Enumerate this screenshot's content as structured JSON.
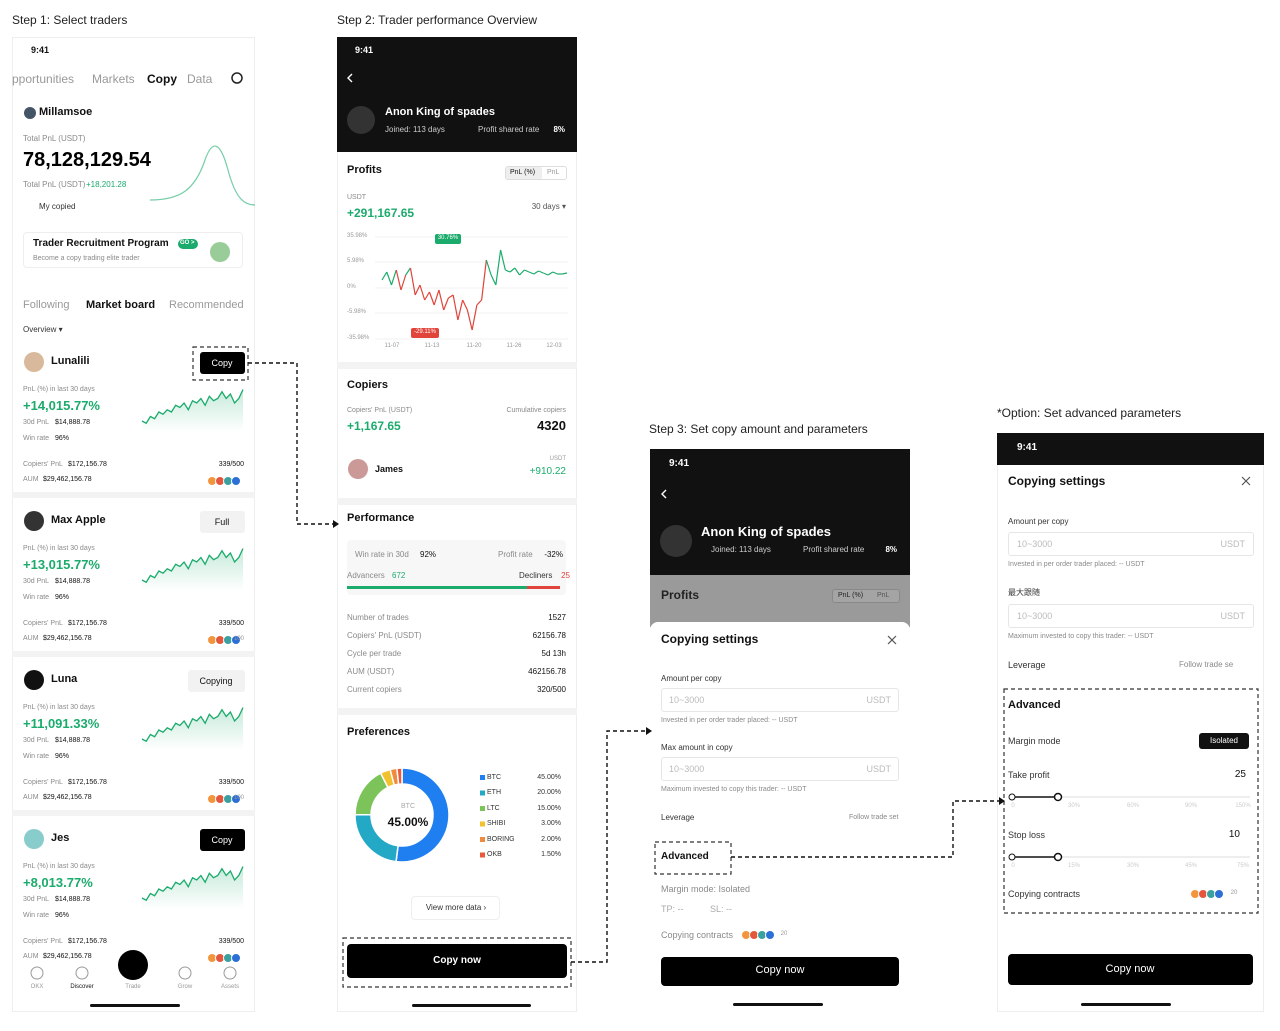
{
  "step1": {
    "label": "Step 1:  Select traders",
    "status_time": "9:41",
    "tabs": [
      "pportunities",
      "Markets",
      "Copy",
      "Data"
    ],
    "account": "Millamsoe",
    "total_pnl_label": "Total PnL (USDT)",
    "total_pnl": "78,128,129.54",
    "pnl_line_label": "Total PnL (USDT)",
    "pnl_line_value": "+18,201.28",
    "my_copied": "My copied",
    "promo_title": "Trader Recruitment Program",
    "promo_badge": "GO >",
    "promo_sub": "Become a copy trading elite trader",
    "subtabs": [
      "Following",
      "Market board",
      "Recommended"
    ],
    "overview": "Overview ▾",
    "traders": [
      {
        "name": "Lunalili",
        "button": "Copy",
        "pnl_label": "PnL (%) in last 30 days",
        "pnl": "+14,015.77%",
        "pnl30_label": "30d PnL",
        "pnl30": "$14,888.78",
        "win_label": "Win rate",
        "win": "96%",
        "copiers_pnl_label": "Copiers' PnL",
        "copiers_pnl": "$172,156.78",
        "aum_label": "AUM",
        "aum": "$29,462,156.78",
        "slots": "339/500"
      },
      {
        "name": "Max Apple",
        "button": "Full",
        "pnl_label": "PnL (%) in last 30 days",
        "pnl": "+13,015.77%",
        "pnl30_label": "30d PnL",
        "pnl30": "$14,888.78",
        "win_label": "Win rate",
        "win": "96%",
        "copiers_pnl_label": "Copiers' PnL",
        "copiers_pnl": "$172,156.78",
        "aum_label": "AUM",
        "aum": "$29,462,156.78",
        "slots": "339/500",
        "coins_extra": "100"
      },
      {
        "name": "Luna",
        "button": "Copying",
        "pnl_label": "PnL (%) in last 30 days",
        "pnl": "+11,091.33%",
        "pnl30_label": "30d PnL",
        "pnl30": "$14,888.78",
        "win_label": "Win rate",
        "win": "96%",
        "copiers_pnl_label": "Copiers' PnL",
        "copiers_pnl": "$172,156.78",
        "aum_label": "AUM",
        "aum": "$29,462,156.78",
        "slots": "339/500",
        "coins_extra": "100"
      },
      {
        "name": "Jes",
        "button": "Copy",
        "pnl_label": "PnL (%) in last 30 days",
        "pnl": "+8,013.77%",
        "pnl30_label": "30d PnL",
        "pnl30": "$14,888.78",
        "win_label": "Win rate",
        "win": "96%",
        "copiers_pnl_label": "Copiers' PnL",
        "copiers_pnl": "$172,156.78",
        "aum_label": "AUM",
        "aum": "$29,462,156.78",
        "slots": "339/500"
      }
    ],
    "nav": [
      "OKX",
      "Discover",
      "Trade",
      "Grow",
      "Assets"
    ]
  },
  "step2": {
    "label": "Step 2:  Trader performance Overview",
    "status_time": "9:41",
    "name": "Anon King of spades",
    "joined": "Joined: 113 days",
    "share_label": "Profit shared rate",
    "share_value": "8%",
    "profits": {
      "title": "Profits",
      "toggle": [
        "PnL (%)",
        "PnL"
      ],
      "currency": "USDT",
      "value": "+291,167.65",
      "period": "30 days ▾",
      "yticks": [
        "35.98%",
        "5.98%",
        "0%",
        "-5.98%",
        "-35.98%"
      ],
      "xticks": [
        "11-07",
        "11-13",
        "11-20",
        "11-26",
        "12-03"
      ],
      "high": "30.76%",
      "low": "-29.11%"
    },
    "copiers": {
      "title": "Copiers",
      "pnl_label": "Copiers' PnL (USDT)",
      "pnl": "+1,167.65",
      "cum_label": "Cumulative copiers",
      "cum": "4320",
      "copier_name": "James",
      "copier_unit": "USDT",
      "copier_pnl": "+910.22"
    },
    "performance": {
      "title": "Performance",
      "win_label": "Win rate in 30d",
      "win": "92%",
      "profit_label": "Profit rate",
      "profit": "-32%",
      "adv_label": "Advancers",
      "adv": "672",
      "dec_label": "Decliners",
      "dec": "25",
      "rows": [
        [
          "Number of trades",
          "1527"
        ],
        [
          "Copiers' PnL (USDT)",
          "62156.78"
        ],
        [
          "Cycle per trade",
          "5d 13h"
        ],
        [
          "AUM (USDT)",
          "462156.78"
        ],
        [
          "Current copiers",
          "320/500"
        ]
      ]
    },
    "preferences": {
      "title": "Preferences",
      "center": "BTC",
      "items": [
        {
          "name": "BTC",
          "value": 45,
          "label": "45.00%",
          "color": "#1f7ef0"
        },
        {
          "name": "ETH",
          "value": 20,
          "label": "20.00%",
          "color": "#23a8c6"
        },
        {
          "name": "LTC",
          "value": 15,
          "label": "15.00%",
          "color": "#7cc35a"
        },
        {
          "name": "SHIBI",
          "value": 3,
          "label": "3.00%",
          "color": "#f2c12e"
        },
        {
          "name": "BORING",
          "value": 2,
          "label": "2.00%",
          "color": "#f08a3c"
        },
        {
          "name": "OKB",
          "value": 1.5,
          "label": "1.50%",
          "color": "#e85a3a"
        }
      ]
    },
    "view_more": "View more data ›",
    "copy_now": "Copy now"
  },
  "step3": {
    "label": "Step 3:  Set copy amount and parameters",
    "status_time": "9:41",
    "name": "Anon King of spades",
    "joined": "Joined: 113 days",
    "share_label": "Profit shared rate",
    "share_value": "8%",
    "profits": "Profits",
    "toggle": [
      "PnL (%)",
      "PnL"
    ],
    "sheet_title": "Copying settings",
    "amount_label": "Amount per copy",
    "amount_placeholder": "10~3000",
    "amount_unit": "USDT",
    "amount_hint": "Invested in per order trader placed: -- USDT",
    "max_label": "Max amount in copy",
    "max_placeholder": "10~3000",
    "max_unit": "USDT",
    "max_hint": "Maximum invested to copy this trader: -- USDT",
    "leverage": "Leverage",
    "leverage_value": "Follow trade set",
    "advanced": "Advanced",
    "margin": "Margin mode: Isolated",
    "tp": "TP: --",
    "sl": "SL: --",
    "contracts": "Copying contracts",
    "contracts_extra": "20",
    "copy_now": "Copy now"
  },
  "option": {
    "label": "*Option:  Set advanced parameters",
    "status_time": "9:41",
    "title": "Copying settings",
    "amount_label": "Amount per copy",
    "amount_placeholder": "10~3000",
    "amount_unit": "USDT",
    "amount_hint": "Invested in per order trader placed: -- USDT",
    "max_label": "最大跟随",
    "max_placeholder": "10~3000",
    "max_unit": "USDT",
    "max_hint": "Maximum invested to copy this trader: -- USDT",
    "leverage": "Leverage",
    "leverage_value": "Follow trade se",
    "advanced": "Advanced",
    "margin": "Margin mode",
    "margin_value": "Isolated",
    "tp_label": "Take profit",
    "tp_value": "25",
    "tp_ticks": [
      "0",
      "30%",
      "60%",
      "90%",
      "150%"
    ],
    "sl_label": "Stop loss",
    "sl_value": "10",
    "sl_ticks": [
      "0",
      "15%",
      "30%",
      "45%",
      "75%"
    ],
    "contracts": "Copying contracts",
    "contracts_extra": "20",
    "copy_now": "Copy now"
  }
}
